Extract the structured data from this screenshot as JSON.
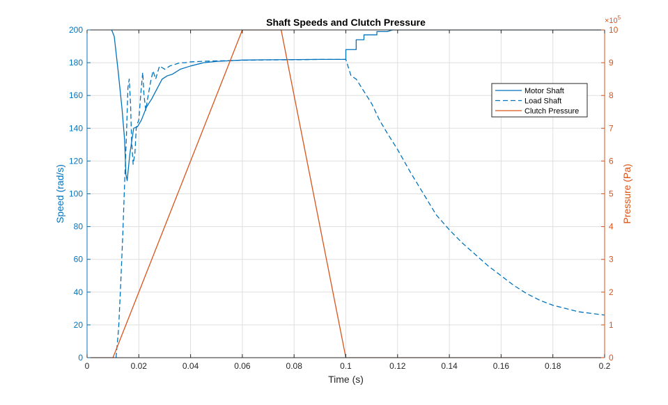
{
  "figure": {
    "title": "Shaft Speeds and Clutch Pressure",
    "xlabel": "Time (s)",
    "ylabel_left": "Speed (rad/s)",
    "ylabel_right": "Pressure (Pa)",
    "right_exponent_base": "×10",
    "right_exponent_power": "5"
  },
  "colors": {
    "motor": "#0072BD",
    "load": "#0072BD",
    "pressure": "#D95319",
    "left_axis": "#0072BD",
    "right_axis": "#D95319",
    "grid": "#dfdfdf",
    "box": "#262626"
  },
  "chart_data": {
    "type": "line",
    "title": "Shaft Speeds and Clutch Pressure",
    "xlabel": "Time (s)",
    "ylabel": "Speed (rad/s)",
    "y2label": "Pressure (Pa)",
    "xlim": [
      0,
      0.2
    ],
    "ylim": [
      0,
      200
    ],
    "y2lim": [
      0,
      1000000
    ],
    "xticks": [
      "0",
      "0.02",
      "0.04",
      "0.06",
      "0.08",
      "0.1",
      "0.12",
      "0.14",
      "0.16",
      "0.18",
      "0.2"
    ],
    "yticks": [
      "0",
      "20",
      "40",
      "60",
      "80",
      "100",
      "120",
      "140",
      "160",
      "180",
      "200"
    ],
    "y2ticks": [
      "0",
      "1",
      "2",
      "3",
      "4",
      "5",
      "6",
      "7",
      "8",
      "9",
      "10"
    ],
    "x_tick_values": [
      0,
      0.02,
      0.04,
      0.06,
      0.08,
      0.1,
      0.12,
      0.14,
      0.16,
      0.18,
      0.2
    ],
    "y_tick_values": [
      0,
      20,
      40,
      60,
      80,
      100,
      120,
      140,
      160,
      180,
      200
    ],
    "y2_tick_values": [
      0,
      100000,
      200000,
      300000,
      400000,
      500000,
      600000,
      700000,
      800000,
      900000,
      1000000
    ],
    "grid": true,
    "legend": {
      "placement": "top-right",
      "entries": [
        "Motor Shaft",
        "Load Shaft",
        "Clutch Pressure"
      ]
    },
    "series": [
      {
        "name": "Motor Shaft",
        "axis": "left",
        "style": "solid",
        "x": [
          0.0095,
          0.0105,
          0.012,
          0.0135,
          0.0145,
          0.015,
          0.0155,
          0.0165,
          0.018,
          0.0195,
          0.021,
          0.023,
          0.025,
          0.027,
          0.029,
          0.031,
          0.033,
          0.036,
          0.04,
          0.045,
          0.05,
          0.06,
          0.07,
          0.08,
          0.09,
          0.1,
          0.1,
          0.101,
          0.104,
          0.104,
          0.107,
          0.107,
          0.112,
          0.112,
          0.116,
          0.118,
          0.2
        ],
        "y": [
          200,
          196,
          175,
          152,
          133,
          112,
          108,
          124,
          140,
          141,
          145,
          153,
          158,
          164,
          170,
          172,
          173,
          176,
          178,
          180,
          180.8,
          181.6,
          181.8,
          181.9,
          182,
          182,
          188,
          188,
          188,
          194,
          194,
          197,
          197,
          199,
          199,
          200,
          200
        ]
      },
      {
        "name": "Load Shaft",
        "axis": "left",
        "style": "dashed",
        "x": [
          0.0112,
          0.0122,
          0.013,
          0.0138,
          0.0145,
          0.0152,
          0.0158,
          0.0163,
          0.0168,
          0.0172,
          0.0178,
          0.0185,
          0.019,
          0.0195,
          0.02,
          0.0207,
          0.0215,
          0.022,
          0.0227,
          0.0235,
          0.0245,
          0.0255,
          0.0265,
          0.028,
          0.03,
          0.032,
          0.034,
          0.036,
          0.038,
          0.04,
          0.044,
          0.048,
          0.053,
          0.06,
          0.07,
          0.08,
          0.09,
          0.1,
          0.102,
          0.104,
          0.106,
          0.108,
          0.11,
          0.113,
          0.116,
          0.12,
          0.125,
          0.13,
          0.135,
          0.14,
          0.145,
          0.15,
          0.155,
          0.16,
          0.165,
          0.17,
          0.175,
          0.18,
          0.185,
          0.19,
          0.195,
          0.2
        ],
        "y": [
          0,
          18,
          45,
          75,
          106,
          135,
          165,
          170,
          155,
          133,
          118,
          125,
          140,
          143,
          145,
          160,
          174,
          160,
          151,
          159,
          168,
          175,
          170,
          178,
          176,
          178,
          179,
          180,
          180,
          180.5,
          180.8,
          181,
          181.2,
          181.5,
          181.7,
          181.8,
          182,
          182,
          172,
          170,
          165,
          160,
          155,
          145,
          137,
          127,
          113,
          100,
          87,
          78,
          70,
          63,
          56,
          50,
          44,
          39,
          35,
          32,
          30,
          28,
          27,
          26
        ]
      },
      {
        "name": "Clutch Pressure",
        "axis": "right",
        "style": "solid",
        "x": [
          0,
          0.01,
          0.06,
          0.075,
          0.1,
          0.2
        ],
        "y": [
          0,
          0,
          1000000,
          1000000,
          0,
          0
        ]
      }
    ]
  }
}
